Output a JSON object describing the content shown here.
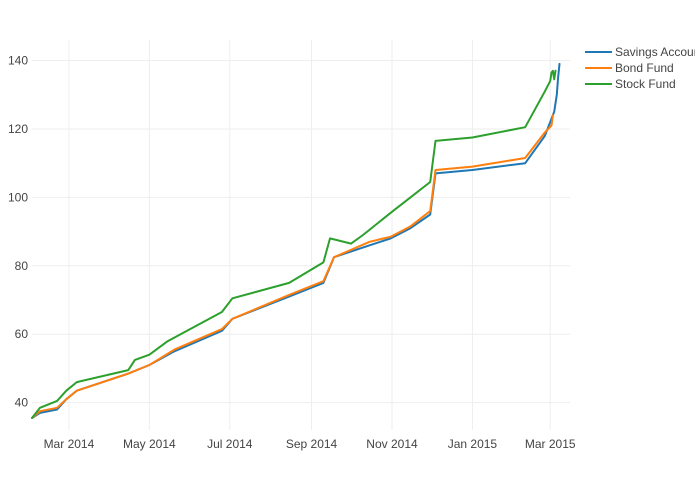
{
  "chart_data": {
    "type": "line",
    "title": "",
    "xlabel": "",
    "ylabel": "",
    "grid": true,
    "legend_position": "top-right",
    "xlim": [
      "2014-02-01",
      "2015-03-16"
    ],
    "ylim": [
      32,
      146
    ],
    "x_ticks": [
      {
        "date": "2014-03-01",
        "label": "Mar 2014"
      },
      {
        "date": "2014-05-01",
        "label": "May 2014"
      },
      {
        "date": "2014-07-01",
        "label": "Jul 2014"
      },
      {
        "date": "2014-09-01",
        "label": "Sep 2014"
      },
      {
        "date": "2014-11-01",
        "label": "Nov 2014"
      },
      {
        "date": "2015-01-01",
        "label": "Jan 2015"
      },
      {
        "date": "2015-03-01",
        "label": "Mar 2015"
      }
    ],
    "y_ticks": [
      {
        "value": 40,
        "label": "40"
      },
      {
        "value": 60,
        "label": "60"
      },
      {
        "value": 80,
        "label": "80"
      },
      {
        "value": 100,
        "label": "100"
      },
      {
        "value": 120,
        "label": "120"
      },
      {
        "value": 140,
        "label": "140"
      }
    ],
    "series": [
      {
        "name": "Savings Account",
        "color": "#1f77b4",
        "points": [
          [
            "2014-02-01",
            35.5
          ],
          [
            "2014-02-07",
            37
          ],
          [
            "2014-02-20",
            38
          ],
          [
            "2014-02-27",
            41
          ],
          [
            "2014-03-07",
            43.5
          ],
          [
            "2014-04-15",
            48.5
          ],
          [
            "2014-05-01",
            51
          ],
          [
            "2014-05-20",
            55
          ],
          [
            "2014-06-25",
            61
          ],
          [
            "2014-07-03",
            64.5
          ],
          [
            "2014-08-15",
            71
          ],
          [
            "2014-09-10",
            75
          ],
          [
            "2014-09-18",
            82.5
          ],
          [
            "2014-10-15",
            86
          ],
          [
            "2014-10-31",
            88
          ],
          [
            "2014-11-15",
            91
          ],
          [
            "2014-11-30",
            95
          ],
          [
            "2014-12-04",
            107
          ],
          [
            "2015-01-01",
            108
          ],
          [
            "2015-02-10",
            110
          ],
          [
            "2015-02-25",
            118
          ],
          [
            "2015-03-02",
            123
          ],
          [
            "2015-03-04",
            125
          ],
          [
            "2015-03-06",
            130
          ],
          [
            "2015-03-07",
            135
          ],
          [
            "2015-03-08",
            139
          ]
        ]
      },
      {
        "name": "Bond Fund",
        "color": "#ff7f0e",
        "points": [
          [
            "2014-02-01",
            35.5
          ],
          [
            "2014-02-07",
            37.5
          ],
          [
            "2014-02-20",
            38.5
          ],
          [
            "2014-02-27",
            41
          ],
          [
            "2014-03-07",
            43.5
          ],
          [
            "2014-04-15",
            48.5
          ],
          [
            "2014-05-01",
            51
          ],
          [
            "2014-05-20",
            55.5
          ],
          [
            "2014-06-25",
            61.5
          ],
          [
            "2014-07-03",
            64.5
          ],
          [
            "2014-08-15",
            71.5
          ],
          [
            "2014-09-10",
            75.5
          ],
          [
            "2014-09-18",
            82.5
          ],
          [
            "2014-10-15",
            87
          ],
          [
            "2014-10-31",
            88.5
          ],
          [
            "2014-11-15",
            91.5
          ],
          [
            "2014-11-30",
            96
          ],
          [
            "2014-12-04",
            108
          ],
          [
            "2015-01-01",
            109
          ],
          [
            "2015-02-10",
            111.5
          ],
          [
            "2015-02-25",
            119
          ],
          [
            "2015-03-02",
            121
          ],
          [
            "2015-03-03",
            124
          ]
        ]
      },
      {
        "name": "Stock Fund",
        "color": "#2ca02c",
        "points": [
          [
            "2014-02-01",
            35.5
          ],
          [
            "2014-02-07",
            38.5
          ],
          [
            "2014-02-20",
            40.5
          ],
          [
            "2014-02-27",
            43.5
          ],
          [
            "2014-03-07",
            46
          ],
          [
            "2014-04-15",
            49.5
          ],
          [
            "2014-04-20",
            52.5
          ],
          [
            "2014-05-01",
            54
          ],
          [
            "2014-05-15",
            58
          ],
          [
            "2014-06-25",
            66.5
          ],
          [
            "2014-07-03",
            70.5
          ],
          [
            "2014-08-15",
            75
          ],
          [
            "2014-09-10",
            81
          ],
          [
            "2014-09-15",
            88
          ],
          [
            "2014-10-01",
            86.5
          ],
          [
            "2014-10-10",
            89
          ],
          [
            "2014-10-31",
            95.5
          ],
          [
            "2014-11-15",
            100
          ],
          [
            "2014-11-30",
            104.5
          ],
          [
            "2014-12-04",
            116.5
          ],
          [
            "2015-01-01",
            117.5
          ],
          [
            "2015-02-10",
            120.5
          ],
          [
            "2015-02-25",
            131
          ],
          [
            "2015-03-01",
            134
          ],
          [
            "2015-03-02",
            136.5
          ],
          [
            "2015-03-03",
            137
          ],
          [
            "2015-03-04",
            134.5
          ],
          [
            "2015-03-05",
            137
          ]
        ]
      }
    ]
  }
}
